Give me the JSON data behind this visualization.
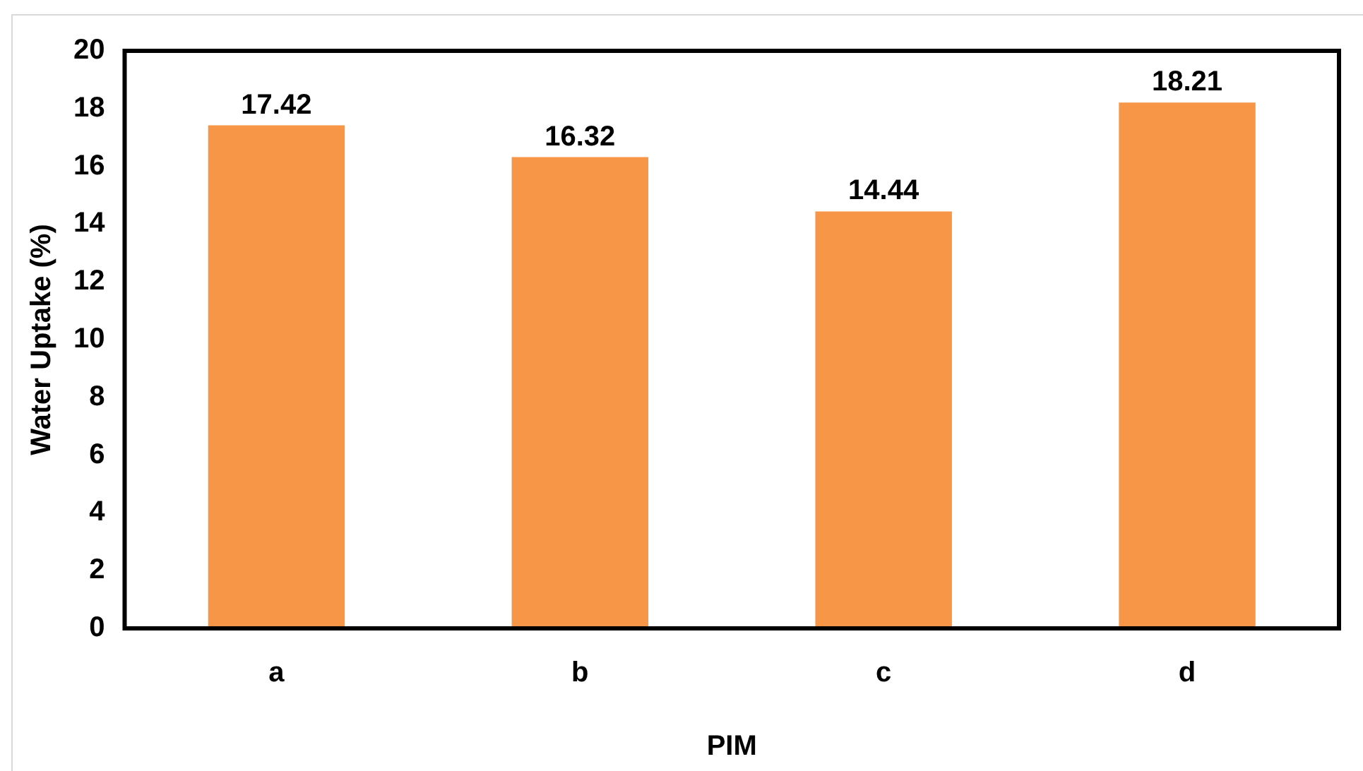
{
  "chart_data": {
    "type": "bar",
    "xlabel": "PIM",
    "ylabel": "Water Uptake (%)",
    "categories": [
      "a",
      "b",
      "c",
      "d"
    ],
    "values": [
      17.42,
      16.32,
      14.44,
      18.21
    ],
    "color": "#f79646",
    "ylim": [
      0,
      20
    ],
    "yticks": [
      0,
      2,
      4,
      6,
      8,
      10,
      12,
      14,
      16,
      18,
      20
    ],
    "data_labels": true,
    "grid": false,
    "legend": false
  }
}
